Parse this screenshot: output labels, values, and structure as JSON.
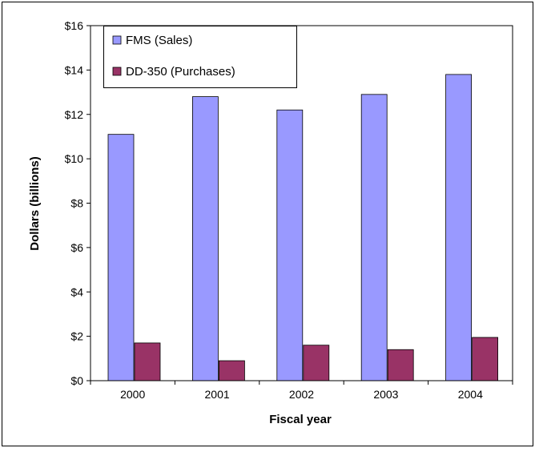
{
  "chart_data": {
    "type": "bar",
    "categories": [
      "2000",
      "2001",
      "2002",
      "2003",
      "2004"
    ],
    "series": [
      {
        "name": "FMS (Sales)",
        "color": "#9999ff",
        "values": [
          11.1,
          12.8,
          12.2,
          12.9,
          13.8
        ]
      },
      {
        "name": "DD-350 (Purchases)",
        "color": "#993366",
        "values": [
          1.7,
          0.9,
          1.6,
          1.4,
          1.95
        ]
      }
    ],
    "title": "",
    "xlabel": "Fiscal year",
    "ylabel": "Dollars (billions)",
    "ylim": [
      0,
      16
    ],
    "yticks": [
      0,
      2,
      4,
      6,
      8,
      10,
      12,
      14,
      16
    ],
    "ytick_labels": [
      "$0",
      "$2",
      "$4",
      "$6",
      "$8",
      "$10",
      "$12",
      "$14",
      "$16"
    ],
    "grid": false,
    "legend_position": "top-left"
  }
}
